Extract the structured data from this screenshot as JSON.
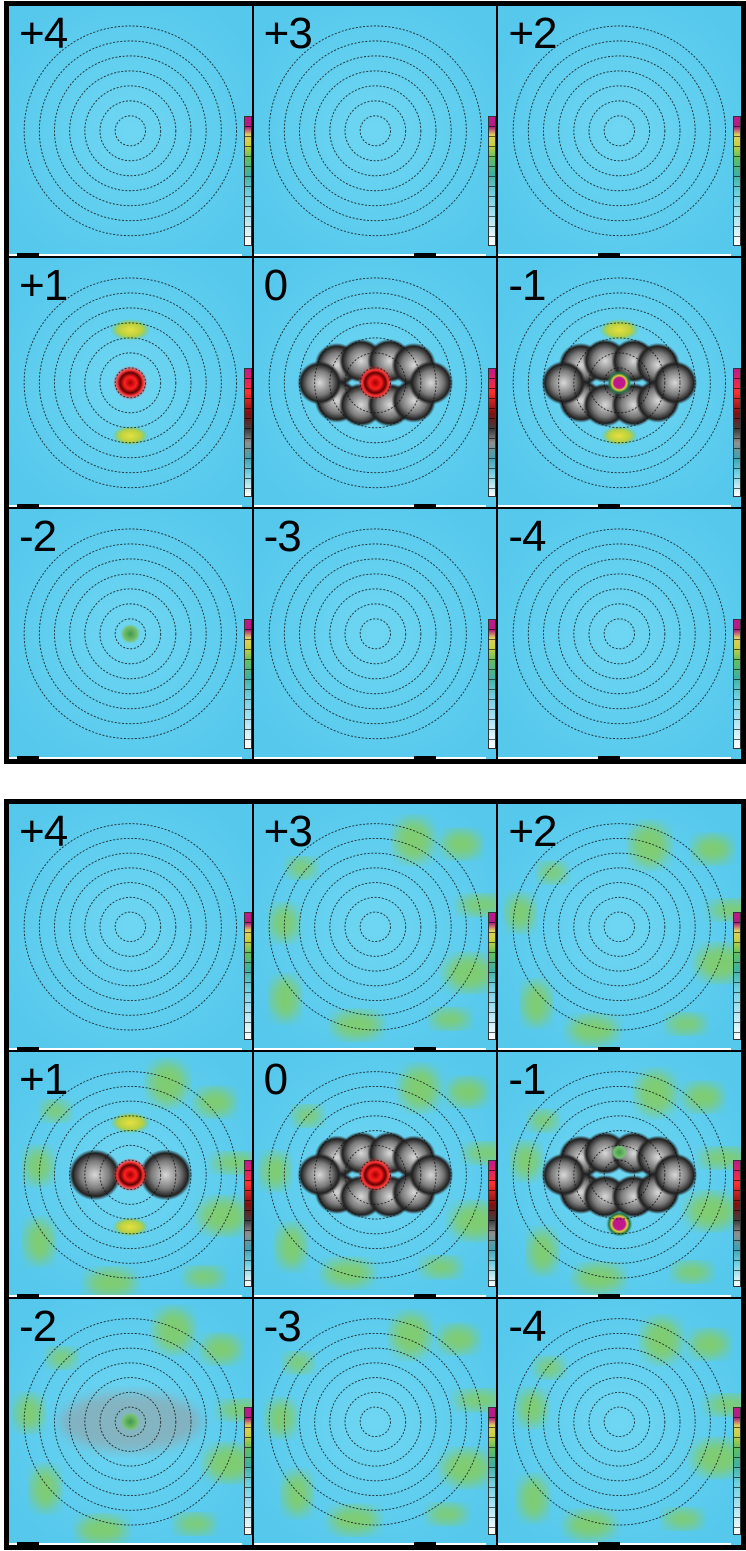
{
  "figures": [
    {
      "id": "top",
      "panels": [
        {
          "label": "+4",
          "features": []
        },
        {
          "label": "+3",
          "features": []
        },
        {
          "label": "+2",
          "features": []
        },
        {
          "label": "+1",
          "features": [
            "center-red",
            "lobes-yellow"
          ]
        },
        {
          "label": "0",
          "features": [
            "center-red",
            "molecule-dark"
          ]
        },
        {
          "label": "-1",
          "features": [
            "center-magenta",
            "molecule-dark",
            "lobes-yellow"
          ]
        },
        {
          "label": "-2",
          "features": [
            "center-green"
          ]
        },
        {
          "label": "-3",
          "features": []
        },
        {
          "label": "-4",
          "features": []
        }
      ]
    },
    {
      "id": "bottom",
      "panels": [
        {
          "label": "+4",
          "features": []
        },
        {
          "label": "+3",
          "features": [
            "noise-green"
          ]
        },
        {
          "label": "+2",
          "features": [
            "noise-green"
          ]
        },
        {
          "label": "+1",
          "features": [
            "center-red",
            "side-lobes-grey",
            "lobes-yellow",
            "noise-green"
          ]
        },
        {
          "label": "0",
          "features": [
            "center-red",
            "molecule-dark",
            "noise-green"
          ]
        },
        {
          "label": "-1",
          "features": [
            "center-magenta-low",
            "molecule-dark",
            "noise-green"
          ]
        },
        {
          "label": "-2",
          "features": [
            "side-lobes-grey-faint",
            "center-green",
            "noise-green"
          ]
        },
        {
          "label": "-3",
          "features": [
            "noise-green"
          ]
        },
        {
          "label": "-4",
          "features": [
            "noise-green"
          ]
        }
      ]
    }
  ],
  "colors": {
    "background": "#5ccff0",
    "low": "#ffffff",
    "mid": "#c8d040",
    "high": "#c0188c",
    "peak": "#ff2020",
    "molecule": "#3a3a3a"
  }
}
